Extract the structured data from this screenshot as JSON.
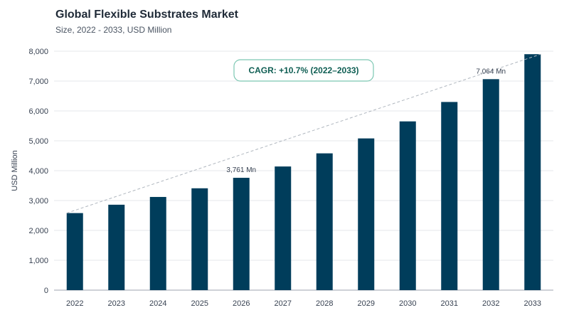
{
  "chart_data": {
    "type": "bar",
    "title": "Global Flexible Substrates Market",
    "subtitle": "Size, 2022 - 2033, USD Million",
    "ylabel": "USD Million",
    "xlabel": "",
    "ylim": [
      0,
      8000
    ],
    "yticks": [
      0,
      1000,
      2000,
      3000,
      4000,
      5000,
      6000,
      7000,
      8000
    ],
    "ytick_labels": [
      "0",
      "1,000",
      "2,000",
      "3,000",
      "4,000",
      "5,000",
      "6,000",
      "7,000",
      "8,000"
    ],
    "categories": [
      "2022",
      "2023",
      "2024",
      "2025",
      "2026",
      "2027",
      "2028",
      "2029",
      "2030",
      "2031",
      "2032",
      "2033"
    ],
    "values": [
      2580,
      2860,
      3120,
      3410,
      3761,
      4140,
      4580,
      5080,
      5650,
      6300,
      7064,
      7900
    ],
    "data_labels": [
      {
        "index": 4,
        "text": "3,761 Mn"
      },
      {
        "index": 10,
        "text": "7,064 Mn"
      }
    ],
    "annotation": {
      "text": "CAGR: +10.7% (2022–2033)"
    },
    "trendline": {
      "style": "dashed",
      "from_index": 0,
      "to_index": 11
    },
    "grid": true,
    "colors": {
      "bar": "#003d5b",
      "grid": "#e5e7eb",
      "trend": "#b0b7bf",
      "annotation_border": "#7cc7b2",
      "annotation_text": "#0f5e53"
    }
  }
}
